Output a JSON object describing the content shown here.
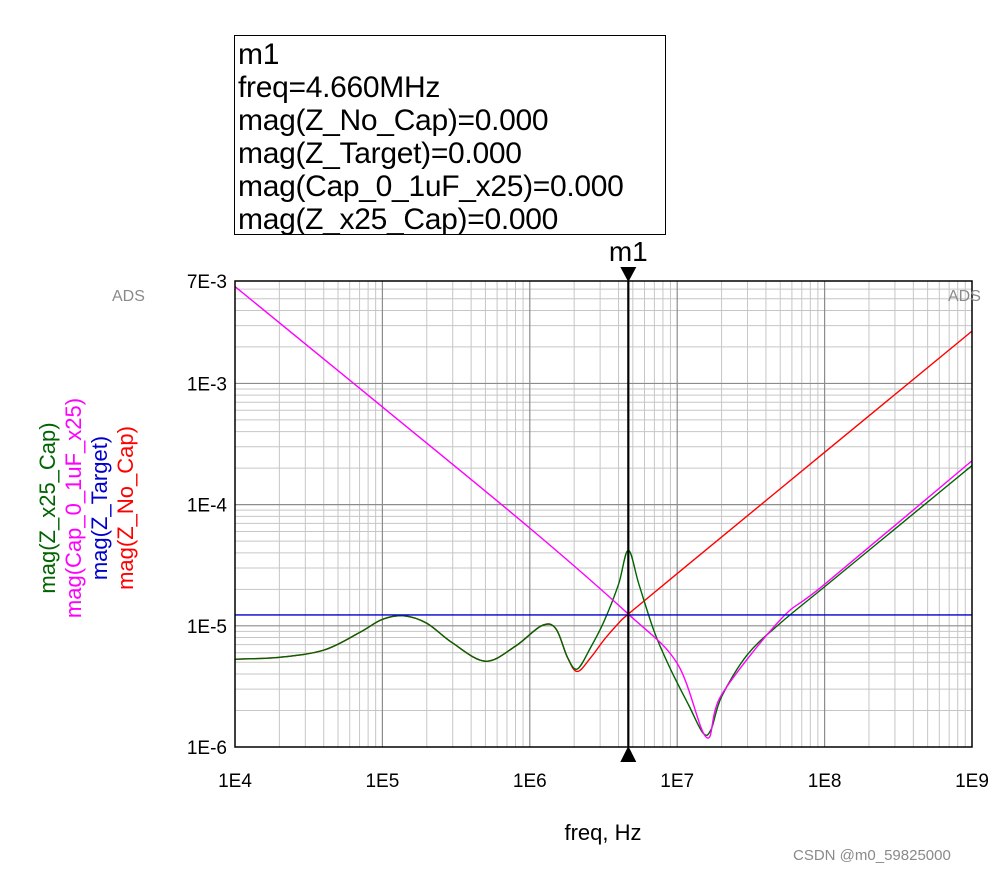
{
  "marker_box": {
    "lines": [
      "m1",
      "freq=4.660MHz",
      "mag(Z_No_Cap)=0.000",
      "mag(Z_Target)=0.000",
      "mag(Cap_0_1uF_x25)=0.000",
      "mag(Z_x25_Cap)=0.000"
    ]
  },
  "marker_label": "m1",
  "ads_tag_left": "ADS",
  "ads_tag_right": "ADS",
  "watermark": "CSDN @m0_59825000",
  "chart_data": {
    "type": "line",
    "xscale": "log",
    "yscale": "log",
    "xlim": [
      10000,
      1000000000
    ],
    "ylim": [
      1e-06,
      0.007
    ],
    "xlabel": "freq, Hz",
    "x_ticks": [
      10000,
      100000,
      1000000,
      10000000,
      100000000,
      1000000000
    ],
    "x_tick_labels": [
      "1E4",
      "1E5",
      "1E6",
      "1E7",
      "1E8",
      "1E9"
    ],
    "y_ticks": [
      1e-06,
      1e-05,
      0.0001,
      0.001,
      0.007
    ],
    "y_tick_labels": [
      "1E-6",
      "1E-5",
      "1E-4",
      "1E-3",
      "7E-3"
    ],
    "grid": true,
    "marker": {
      "name": "m1",
      "x": 4660000
    },
    "series": [
      {
        "name": "mag(Z_x25_Cap)",
        "color": "#006400",
        "x": [
          10000,
          20000,
          40000,
          70000,
          100000,
          140000,
          200000,
          300000,
          500000,
          800000,
          1200000,
          1500000,
          1800000,
          2100000,
          2600000,
          3200000,
          4000000,
          4660000,
          5500000,
          7000000,
          9000000,
          12000000,
          15000000,
          17000000,
          20000000,
          30000000,
          50000000,
          100000000,
          200000000,
          500000000,
          1000000000
        ],
        "y": [
          5.3e-06,
          5.5e-06,
          6.3e-06,
          8.8e-06,
          1.13e-05,
          1.21e-05,
          1.05e-05,
          7.2e-06,
          5.1e-06,
          6.8e-06,
          1e-05,
          9.5e-06,
          5.5e-06,
          4.4e-06,
          6.7e-06,
          1.1e-05,
          2.2e-05,
          4.2e-05,
          2.2e-05,
          8.9e-06,
          4.4e-06,
          2.2e-06,
          1.3e-06,
          1.4e-06,
          2.6e-06,
          5.8e-06,
          1.05e-05,
          2.1e-05,
          4.2e-05,
          0.000105,
          0.00021
        ]
      },
      {
        "name": "mag(Cap_0_1uF_x25)",
        "color": "#ff00ff",
        "x": [
          10000,
          100000,
          1000000,
          4660000,
          10000000,
          15800000,
          20000000,
          50000000,
          100000000,
          1000000000
        ],
        "y": [
          0.0063,
          0.00064,
          6.4e-05,
          1.25e-05,
          4.9e-06,
          1.2e-06,
          2.7e-06,
          1.12e-05,
          2.2e-05,
          0.00023
        ]
      },
      {
        "name": "mag(Z_Target)",
        "color": "#0000cc",
        "x": [
          10000,
          1000000000
        ],
        "y": [
          1.23e-05,
          1.23e-05
        ]
      },
      {
        "name": "mag(Z_No_Cap)",
        "color": "#ff0000",
        "x": [
          10000,
          20000,
          40000,
          70000,
          100000,
          140000,
          200000,
          300000,
          500000,
          800000,
          1200000,
          1500000,
          1800000,
          2100000,
          2600000,
          3200000,
          4000000,
          4660000,
          10000000,
          100000000,
          1000000000
        ],
        "y": [
          5.3e-06,
          5.5e-06,
          6.3e-06,
          8.8e-06,
          1.13e-05,
          1.21e-05,
          1.05e-05,
          7.2e-06,
          5.1e-06,
          6.8e-06,
          1e-05,
          9.5e-06,
          5.5e-06,
          4.2e-06,
          5.5e-06,
          7.7e-06,
          1.05e-05,
          1.25e-05,
          2.7e-05,
          0.00027,
          0.0027
        ]
      }
    ]
  }
}
